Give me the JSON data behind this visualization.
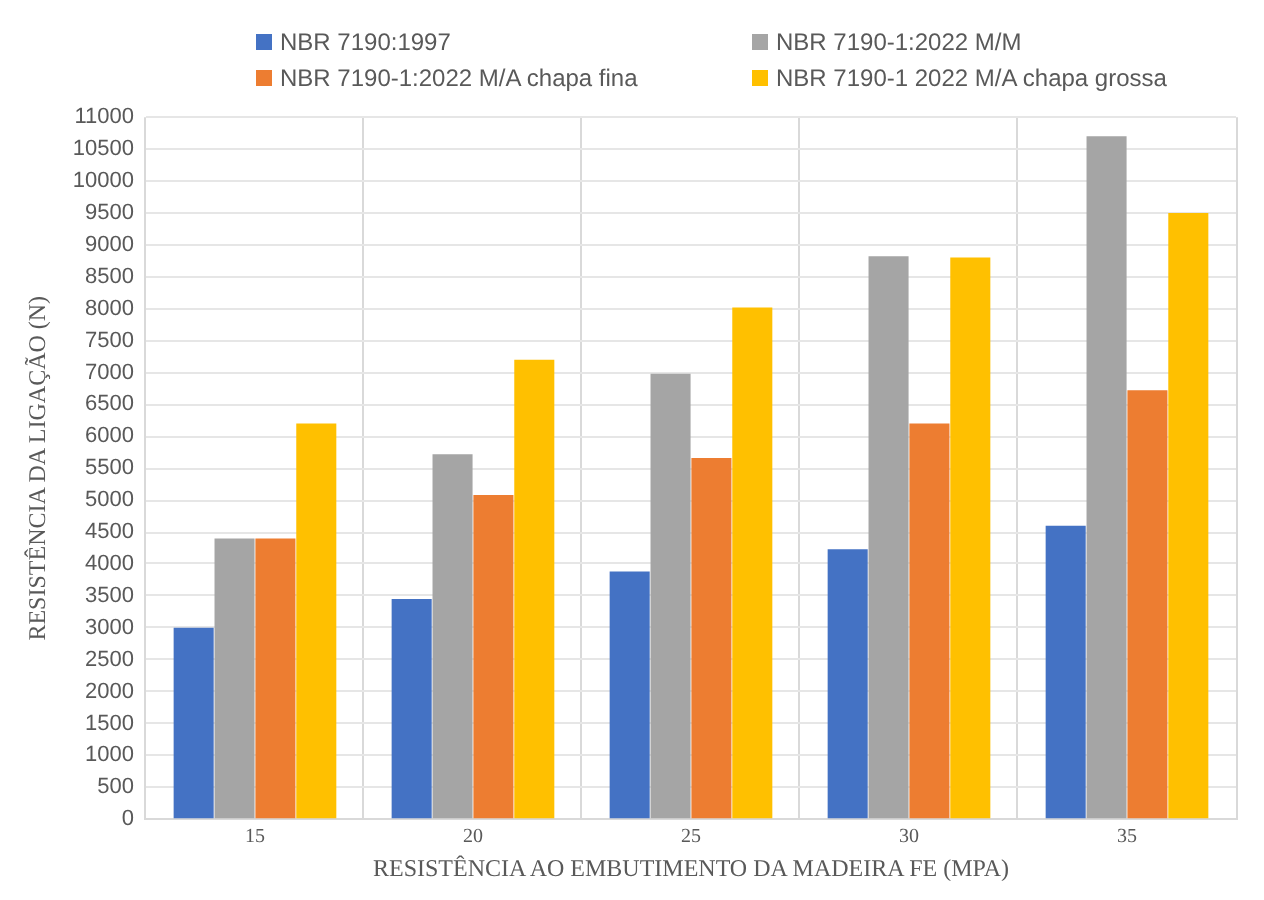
{
  "chart_data": {
    "type": "bar",
    "xlabel": "RESISTÊNCIA AO EMBUTIMENTO DA MADEIRA FE (MPA)",
    "ylabel": "RESISTÊNCIA DA LIGAÇÃO (N)",
    "categories": [
      "15",
      "20",
      "25",
      "30",
      "35"
    ],
    "series": [
      {
        "name": "NBR 7190:1997",
        "color": "#4472c4",
        "values": [
          3000,
          3450,
          3880,
          4230,
          4600
        ]
      },
      {
        "name": "NBR 7190-1:2022 M/M",
        "color": "#a5a5a5",
        "values": [
          4400,
          5720,
          6980,
          8820,
          10700
        ]
      },
      {
        "name": "NBR 7190-1:2022 M/A chapa fina",
        "color": "#ed7d31",
        "values": [
          4400,
          5080,
          5660,
          6200,
          6720
        ]
      },
      {
        "name": "NBR 7190-1 2022 M/A chapa grossa",
        "color": "#ffc000",
        "values": [
          6200,
          7200,
          8020,
          8800,
          9500
        ]
      }
    ],
    "ylim": [
      0,
      11000
    ],
    "yticks": [
      0,
      500,
      1000,
      1500,
      2000,
      2500,
      3000,
      3500,
      4000,
      4500,
      5000,
      5500,
      6000,
      6500,
      7000,
      7500,
      8000,
      8500,
      9000,
      9500,
      10000,
      10500,
      11000
    ],
    "grid": true,
    "legend": "top"
  }
}
